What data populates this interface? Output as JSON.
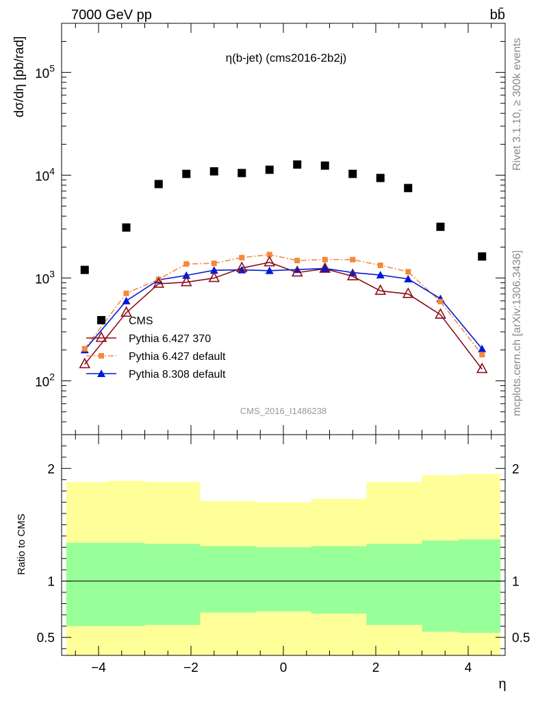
{
  "header": {
    "energy": "7000 GeV pp",
    "process": "bb̄",
    "plot_title": "η(b-jet) (cms2016-2b2j)",
    "rivet_label": "Rivet 3.1.10, ≥ 300k events",
    "site_label": "mcplots.cern.ch [arXiv:1306.3436]",
    "analysis_tag": "CMS_2016_I1486238"
  },
  "colors": {
    "cms": "#000000",
    "p6_370": "#8b0d1a",
    "p6_default": "#f5883a",
    "p8_default": "#0019d9",
    "band_inner": "#99ff99",
    "band_outer": "#ffff99"
  },
  "chart_data": [
    {
      "type": "scatter",
      "name": "main",
      "ylabel": "dσ/dη [pb/rad]",
      "yscale": "log",
      "xlim": [
        -4.8,
        4.8
      ],
      "ylim": [
        30,
        300000
      ],
      "y_tick_labels": [
        {
          "value": 100,
          "base": "10",
          "exp": "2"
        },
        {
          "value": 1000,
          "base": "10",
          "exp": "3"
        },
        {
          "value": 10000,
          "base": "10",
          "exp": "4"
        },
        {
          "value": 100000,
          "base": "10",
          "exp": "5"
        }
      ],
      "x": [
        -4.3,
        -3.4,
        -2.7,
        -2.1,
        -1.5,
        -0.9,
        -0.3,
        0.3,
        0.9,
        1.5,
        2.1,
        2.7,
        3.4,
        4.3
      ],
      "legend_position": "left-lower",
      "series": [
        {
          "key": "cms",
          "name": "CMS",
          "values": [
            1200,
            3100,
            8200,
            10300,
            10900,
            10500,
            11300,
            12700,
            12400,
            10300,
            9400,
            7500,
            3150,
            1620
          ]
        },
        {
          "key": "p6_370",
          "name": "Pythia 6.427 370",
          "values": [
            145,
            460,
            880,
            910,
            1000,
            1250,
            1420,
            1130,
            1230,
            1040,
            750,
            700,
            440,
            130
          ]
        },
        {
          "key": "p6_default",
          "name": "Pythia 6.427 default",
          "values": [
            205,
            710,
            970,
            1370,
            1390,
            1580,
            1690,
            1480,
            1510,
            1510,
            1330,
            1150,
            590,
            180
          ]
        },
        {
          "key": "p8_default",
          "name": "Pythia 8.308 default",
          "values": [
            200,
            600,
            960,
            1060,
            1190,
            1200,
            1180,
            1210,
            1240,
            1130,
            1070,
            980,
            630,
            205
          ]
        }
      ]
    },
    {
      "type": "area",
      "name": "ratio",
      "ylabel": "Ratio to CMS",
      "xlabel": "η",
      "xlim": [
        -4.8,
        4.8
      ],
      "ylim": [
        0.34,
        2.3
      ],
      "y_ticks": [
        0.5,
        1,
        2
      ],
      "y_tick_labels": [
        "0.5",
        "1",
        "2"
      ],
      "x_ticks": [
        -4,
        -2,
        0,
        2,
        4
      ],
      "x_tick_labels": [
        "−4",
        "−2",
        "0",
        "2",
        "4"
      ],
      "bin_edges": [
        -4.7,
        -3.8,
        -3.0,
        -2.4,
        -1.8,
        -1.2,
        -0.6,
        0.0,
        0.6,
        1.2,
        1.8,
        2.4,
        3.0,
        3.8,
        4.7
      ],
      "band_inner_upper": [
        1.34,
        1.34,
        1.33,
        1.33,
        1.31,
        1.31,
        1.3,
        1.3,
        1.31,
        1.31,
        1.33,
        1.33,
        1.36,
        1.37
      ],
      "band_inner_lower": [
        0.6,
        0.6,
        0.61,
        0.61,
        0.72,
        0.72,
        0.73,
        0.73,
        0.71,
        0.71,
        0.61,
        0.61,
        0.55,
        0.54
      ],
      "band_outer_upper": [
        1.88,
        1.89,
        1.88,
        1.88,
        1.71,
        1.71,
        1.7,
        1.7,
        1.73,
        1.73,
        1.88,
        1.88,
        1.94,
        1.95
      ],
      "band_outer_lower": [
        0.34,
        0.34,
        0.34,
        0.34,
        0.34,
        0.34,
        0.34,
        0.34,
        0.34,
        0.34,
        0.34,
        0.34,
        0.34,
        0.34
      ]
    }
  ]
}
